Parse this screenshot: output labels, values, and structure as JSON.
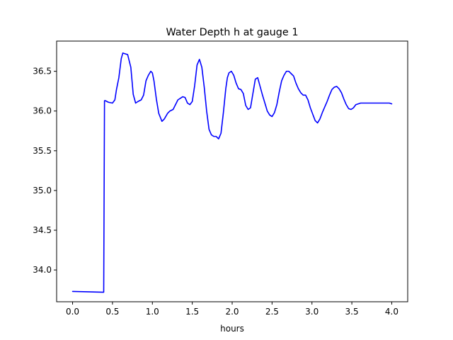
{
  "chart_data": {
    "type": "line",
    "title": "Water Depth h at gauge 1",
    "xlabel": "hours",
    "ylabel": "",
    "xlim": [
      -0.2,
      4.2
    ],
    "ylim": [
      33.6,
      36.88
    ],
    "xticks": [
      0.0,
      0.5,
      1.0,
      1.5,
      2.0,
      2.5,
      3.0,
      3.5,
      4.0
    ],
    "xtick_labels": [
      "0.0",
      "0.5",
      "1.0",
      "1.5",
      "2.0",
      "2.5",
      "3.0",
      "3.5",
      "4.0"
    ],
    "yticks": [
      34.0,
      34.5,
      35.0,
      35.5,
      36.0,
      36.5
    ],
    "ytick_labels": [
      "34.0",
      "34.5",
      "35.0",
      "35.5",
      "36.0",
      "36.5"
    ],
    "grid": false,
    "legend": "none",
    "series": [
      {
        "color": "#0000ff",
        "x": [
          0.0,
          0.39,
          0.4,
          0.41,
          0.45,
          0.5,
          0.53,
          0.55,
          0.58,
          0.61,
          0.63,
          0.66,
          0.69,
          0.73,
          0.76,
          0.79,
          0.82,
          0.86,
          0.89,
          0.92,
          0.95,
          0.98,
          1.0,
          1.02,
          1.05,
          1.08,
          1.12,
          1.15,
          1.19,
          1.22,
          1.26,
          1.29,
          1.32,
          1.35,
          1.38,
          1.41,
          1.44,
          1.47,
          1.5,
          1.53,
          1.56,
          1.59,
          1.62,
          1.65,
          1.68,
          1.71,
          1.74,
          1.77,
          1.8,
          1.83,
          1.86,
          1.89,
          1.92,
          1.94,
          1.96,
          1.99,
          2.02,
          2.05,
          2.08,
          2.11,
          2.14,
          2.17,
          2.2,
          2.23,
          2.26,
          2.29,
          2.32,
          2.35,
          2.38,
          2.41,
          2.44,
          2.47,
          2.5,
          2.53,
          2.56,
          2.59,
          2.62,
          2.65,
          2.68,
          2.71,
          2.74,
          2.77,
          2.8,
          2.83,
          2.86,
          2.89,
          2.92,
          2.95,
          2.98,
          3.01,
          3.04,
          3.07,
          3.1,
          3.13,
          3.16,
          3.19,
          3.22,
          3.25,
          3.28,
          3.31,
          3.34,
          3.37,
          3.4,
          3.43,
          3.46,
          3.49,
          3.52,
          3.55,
          3.58,
          3.61,
          3.64,
          3.67,
          3.7,
          3.73,
          3.76,
          3.79,
          3.82,
          3.85,
          3.88,
          3.91,
          3.94,
          3.97,
          4.0
        ],
        "y": [
          33.73,
          33.72,
          36.13,
          36.13,
          36.11,
          36.1,
          36.14,
          36.27,
          36.42,
          36.66,
          36.73,
          36.72,
          36.71,
          36.55,
          36.21,
          36.1,
          36.12,
          36.14,
          36.2,
          36.38,
          36.45,
          36.5,
          36.48,
          36.38,
          36.15,
          35.97,
          35.87,
          35.9,
          35.97,
          36.0,
          36.02,
          36.08,
          36.14,
          36.16,
          36.18,
          36.17,
          36.1,
          36.08,
          36.12,
          36.32,
          36.58,
          36.65,
          36.55,
          36.3,
          36.0,
          35.77,
          35.7,
          35.68,
          35.68,
          35.65,
          35.72,
          35.98,
          36.28,
          36.42,
          36.48,
          36.5,
          36.45,
          36.35,
          36.28,
          36.27,
          36.22,
          36.07,
          36.02,
          36.04,
          36.22,
          36.4,
          36.42,
          36.31,
          36.2,
          36.1,
          36.0,
          35.95,
          35.93,
          35.98,
          36.08,
          36.24,
          36.38,
          36.45,
          36.5,
          36.5,
          36.47,
          36.44,
          36.35,
          36.28,
          36.23,
          36.2,
          36.2,
          36.14,
          36.04,
          35.96,
          35.88,
          35.85,
          35.9,
          35.98,
          36.05,
          36.12,
          36.2,
          36.27,
          36.3,
          36.31,
          36.28,
          36.23,
          36.15,
          36.08,
          36.03,
          36.02,
          36.04,
          36.08,
          36.09,
          36.1,
          36.1,
          36.1,
          36.1,
          36.1,
          36.1,
          36.1,
          36.1,
          36.1,
          36.1,
          36.1,
          36.1,
          36.1,
          36.09
        ]
      }
    ]
  }
}
